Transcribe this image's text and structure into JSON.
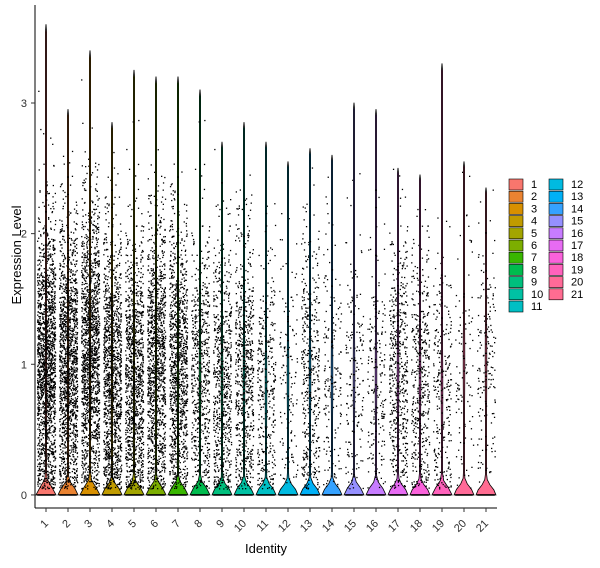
{
  "chart_data": {
    "type": "violin",
    "xlabel": "Identity",
    "ylabel": "Expression Level",
    "ylim": [
      -0.1,
      3.75
    ],
    "yticks": [
      0,
      1,
      2,
      3
    ],
    "grid": false,
    "legend_position": "right",
    "categories": [
      "1",
      "2",
      "3",
      "4",
      "5",
      "6",
      "7",
      "8",
      "9",
      "10",
      "11",
      "12",
      "13",
      "14",
      "15",
      "16",
      "17",
      "18",
      "19",
      "20",
      "21"
    ],
    "series": [
      {
        "name": "1",
        "color": "#F8766D",
        "max": 3.6,
        "point_density": 1.0,
        "median": 1.0
      },
      {
        "name": "2",
        "color": "#EA8331",
        "max": 2.95,
        "point_density": 0.85,
        "median": 1.0
      },
      {
        "name": "3",
        "color": "#D89000",
        "max": 3.4,
        "point_density": 0.9,
        "median": 1.1
      },
      {
        "name": "4",
        "color": "#C09B00",
        "max": 2.85,
        "point_density": 0.75,
        "median": 0.9
      },
      {
        "name": "5",
        "color": "#A3A500",
        "max": 3.25,
        "point_density": 0.65,
        "median": 0.9
      },
      {
        "name": "6",
        "color": "#7CAE00",
        "max": 3.2,
        "point_density": 0.7,
        "median": 1.0
      },
      {
        "name": "7",
        "color": "#39B600",
        "max": 3.2,
        "point_density": 0.65,
        "median": 1.0
      },
      {
        "name": "8",
        "color": "#00BB4E",
        "max": 3.1,
        "point_density": 0.35,
        "median": 0.9
      },
      {
        "name": "9",
        "color": "#00BF7D",
        "max": 2.7,
        "point_density": 0.4,
        "median": 0.9
      },
      {
        "name": "10",
        "color": "#00C1A3",
        "max": 2.85,
        "point_density": 0.4,
        "median": 0.9
      },
      {
        "name": "11",
        "color": "#00BFC4",
        "max": 2.7,
        "point_density": 0.2,
        "median": 0.8
      },
      {
        "name": "12",
        "color": "#00BAE0",
        "max": 2.55,
        "point_density": 0.08,
        "median": 0.9
      },
      {
        "name": "13",
        "color": "#00B0F6",
        "max": 2.65,
        "point_density": 0.25,
        "median": 0.9
      },
      {
        "name": "14",
        "color": "#35A2FF",
        "max": 2.6,
        "point_density": 0.1,
        "median": 0.9
      },
      {
        "name": "15",
        "color": "#9590FF",
        "max": 3.0,
        "point_density": 0.1,
        "median": 0.9
      },
      {
        "name": "16",
        "color": "#C77CFF",
        "max": 2.95,
        "point_density": 0.12,
        "median": 0.9
      },
      {
        "name": "17",
        "color": "#E76BF3",
        "max": 2.5,
        "point_density": 0.3,
        "median": 0.9
      },
      {
        "name": "18",
        "color": "#FA62DB",
        "max": 2.45,
        "point_density": 0.25,
        "median": 0.9
      },
      {
        "name": "19",
        "color": "#FF62BC",
        "max": 3.3,
        "point_density": 0.15,
        "median": 0.8
      },
      {
        "name": "20",
        "color": "#FF6A98",
        "max": 2.55,
        "point_density": 0.06,
        "median": 1.0
      },
      {
        "name": "21",
        "color": "#FF6C91",
        "max": 2.35,
        "point_density": 0.1,
        "median": 1.0
      }
    ]
  }
}
